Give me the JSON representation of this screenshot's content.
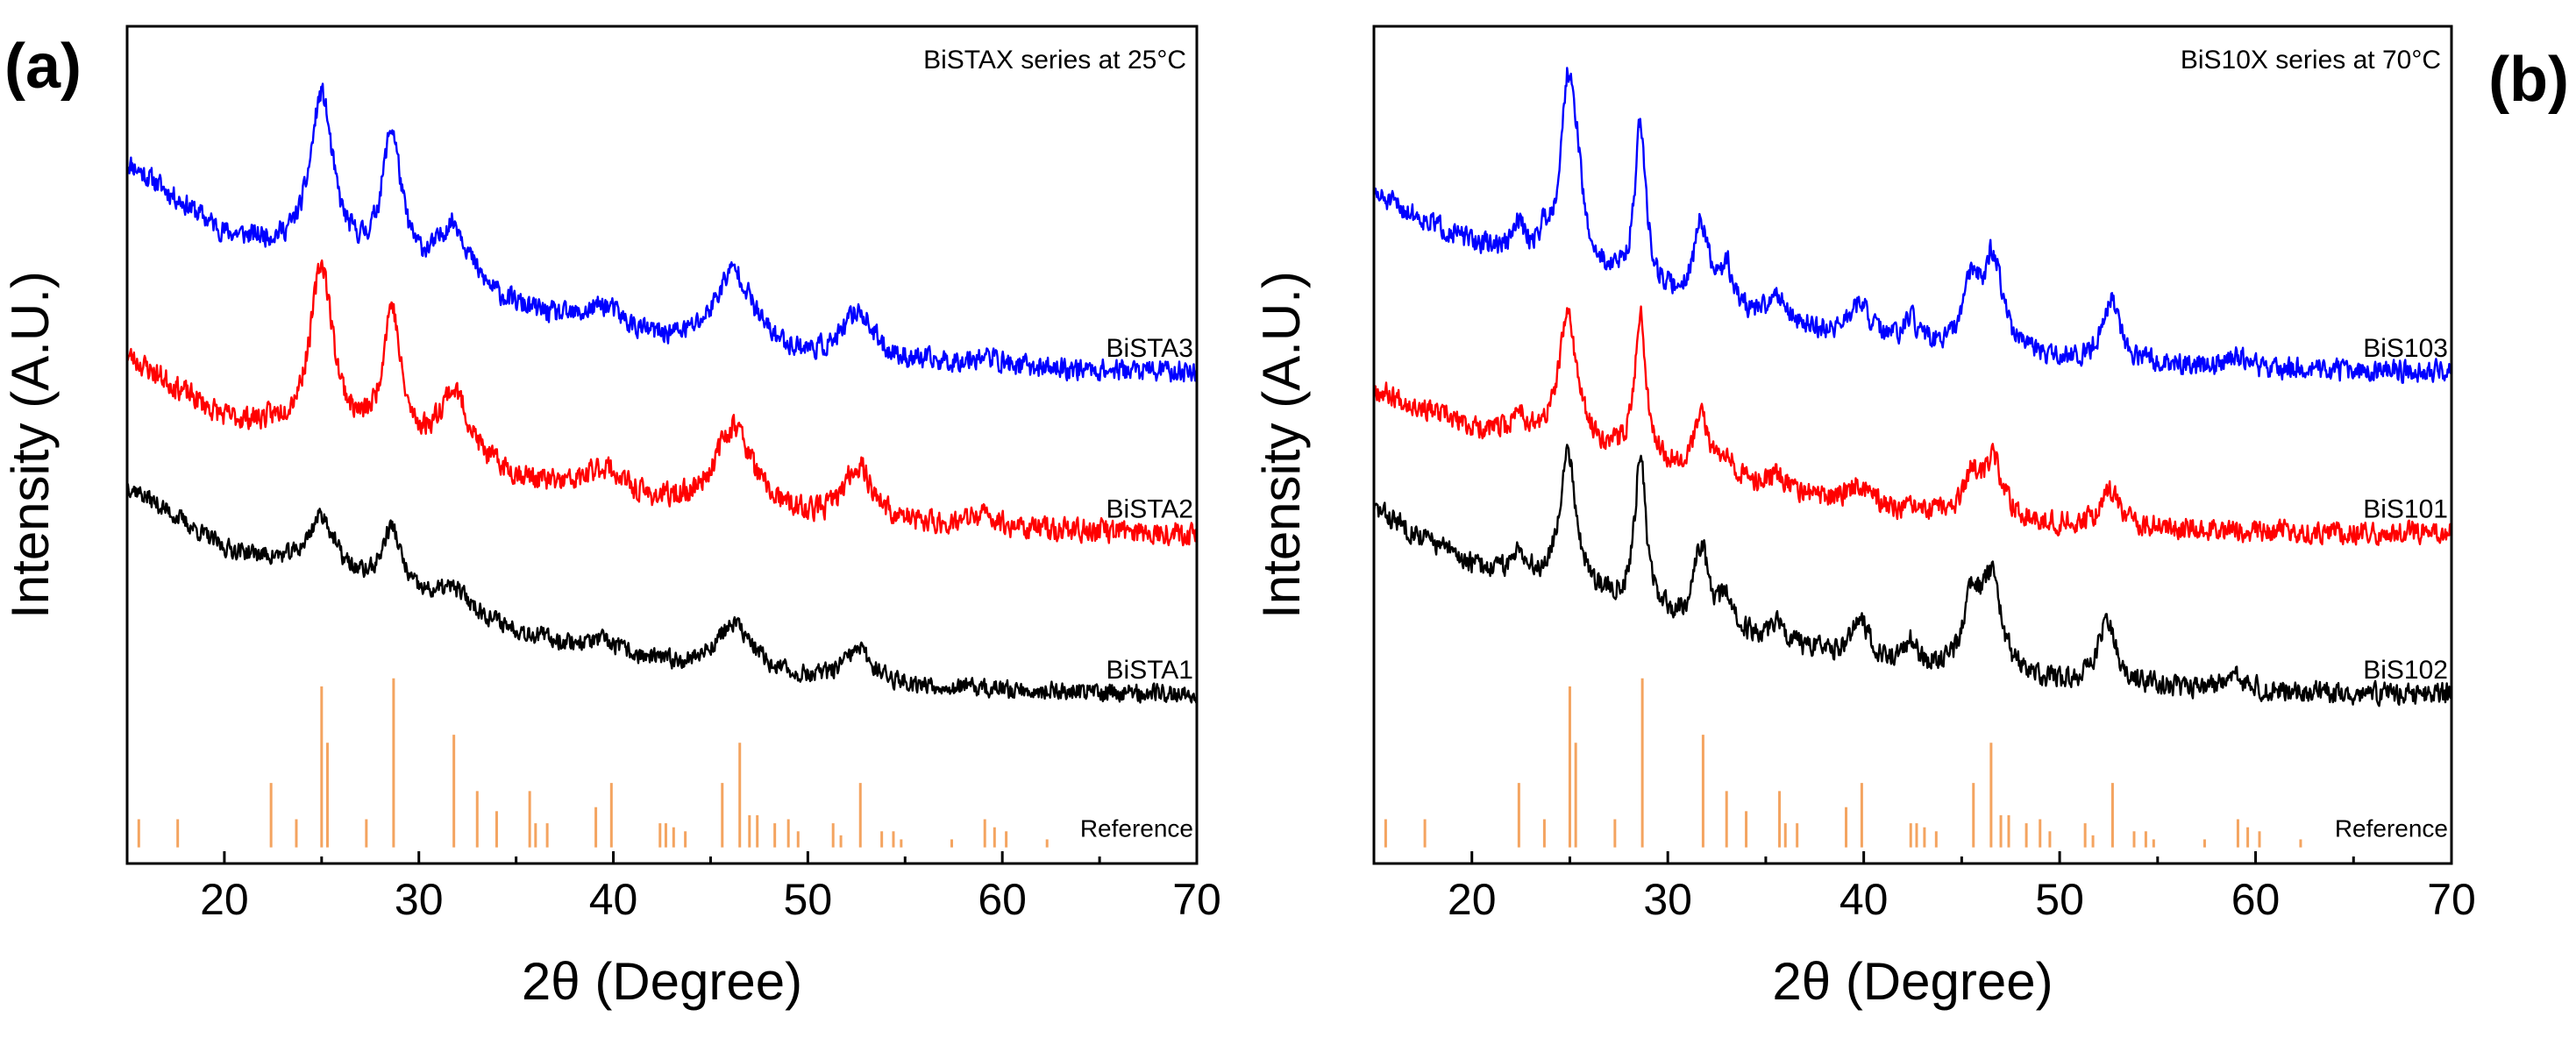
{
  "chart_data": [
    {
      "type": "line",
      "panel_label": "(a)",
      "title": "BiSTAX series at 25°C",
      "xlabel": "2θ (Degree)",
      "ylabel": "Intensity (A.U.)",
      "xlim": [
        15,
        70
      ],
      "xticks": [
        20,
        30,
        40,
        50,
        60,
        70
      ],
      "y_ticks_shown": false,
      "series": [
        {
          "name": "BiSTA3",
          "color": "#0000ff",
          "baseline": 4.5,
          "amp": 1.0,
          "noise": 0.12,
          "seed": 11,
          "bg": [
            [
              15,
              2.6
            ],
            [
              20,
              1.7
            ],
            [
              25,
              1.4
            ],
            [
              30,
              1.1
            ],
            [
              40,
              0.4
            ],
            [
              50,
              0.15
            ],
            [
              60,
              0.05
            ],
            [
              70,
              0.0
            ]
          ],
          "peaks": [
            [
              25.0,
              2.0,
              0.7
            ],
            [
              28.6,
              1.7,
              0.6
            ],
            [
              31.8,
              0.8,
              1.0
            ],
            [
              39.6,
              0.35,
              1.2
            ],
            [
              46.2,
              1.0,
              1.2
            ],
            [
              52.6,
              0.6,
              0.9
            ],
            [
              59.0,
              0.12,
              1.0
            ]
          ]
        },
        {
          "name": "BiSTA2",
          "color": "#ff0000",
          "baseline": 2.5,
          "amp": 1.0,
          "noise": 0.13,
          "seed": 23,
          "bg": [
            [
              15,
              2.2
            ],
            [
              20,
              1.4
            ],
            [
              25,
              1.2
            ],
            [
              30,
              0.9
            ],
            [
              40,
              0.35
            ],
            [
              50,
              0.12
            ],
            [
              60,
              0.04
            ],
            [
              70,
              0.0
            ]
          ],
          "peaks": [
            [
              25.0,
              2.1,
              0.7
            ],
            [
              28.6,
              1.7,
              0.55
            ],
            [
              31.8,
              0.9,
              1.0
            ],
            [
              39.6,
              0.4,
              1.2
            ],
            [
              46.2,
              1.1,
              1.2
            ],
            [
              52.6,
              0.7,
              0.9
            ],
            [
              59.0,
              0.15,
              1.0
            ]
          ]
        },
        {
          "name": "BiSTA1",
          "color": "#000000",
          "baseline": 0.5,
          "amp": 1.0,
          "noise": 0.1,
          "seed": 37,
          "bg": [
            [
              15,
              2.6
            ],
            [
              20,
              1.8
            ],
            [
              25,
              1.5
            ],
            [
              30,
              1.1
            ],
            [
              40,
              0.4
            ],
            [
              50,
              0.15
            ],
            [
              60,
              0.05
            ],
            [
              70,
              0.0
            ]
          ],
          "peaks": [
            [
              25.0,
              0.7,
              0.8
            ],
            [
              28.6,
              0.8,
              0.6
            ],
            [
              31.8,
              0.3,
              1.2
            ],
            [
              39.6,
              0.2,
              1.4
            ],
            [
              46.2,
              0.6,
              1.2
            ],
            [
              52.6,
              0.4,
              0.9
            ]
          ]
        }
      ],
      "reference": {
        "name": "Reference",
        "color": "#f4a460",
        "baseline": -1.4,
        "peaks": [
          [
            15.6,
            0.35
          ],
          [
            17.6,
            0.35
          ],
          [
            22.4,
            0.8
          ],
          [
            23.7,
            0.35
          ],
          [
            25.0,
            2.0
          ],
          [
            25.3,
            1.3
          ],
          [
            27.3,
            0.35
          ],
          [
            28.7,
            2.1
          ],
          [
            31.8,
            1.4
          ],
          [
            33.0,
            0.7
          ],
          [
            34.0,
            0.45
          ],
          [
            35.7,
            0.7
          ],
          [
            36.0,
            0.3
          ],
          [
            36.6,
            0.3
          ],
          [
            39.1,
            0.5
          ],
          [
            39.9,
            0.8
          ],
          [
            42.4,
            0.3
          ],
          [
            42.7,
            0.3
          ],
          [
            43.1,
            0.25
          ],
          [
            43.7,
            0.2
          ],
          [
            45.6,
            0.8
          ],
          [
            46.5,
            1.3
          ],
          [
            47.0,
            0.4
          ],
          [
            47.4,
            0.4
          ],
          [
            48.3,
            0.3
          ],
          [
            49.0,
            0.35
          ],
          [
            49.5,
            0.2
          ],
          [
            51.3,
            0.3
          ],
          [
            51.7,
            0.15
          ],
          [
            52.7,
            0.8
          ],
          [
            53.8,
            0.2
          ],
          [
            54.4,
            0.2
          ],
          [
            54.8,
            0.1
          ],
          [
            57.4,
            0.1
          ],
          [
            59.1,
            0.35
          ],
          [
            59.6,
            0.25
          ],
          [
            60.2,
            0.2
          ],
          [
            62.3,
            0.1
          ]
        ]
      }
    },
    {
      "type": "line",
      "panel_label": "(b)",
      "title": "BiS10X series at 70°C",
      "xlabel": "2θ (Degree)",
      "ylabel": "Intensity (A.U.)",
      "xlim": [
        15,
        70
      ],
      "xticks": [
        20,
        30,
        40,
        50,
        60,
        70
      ],
      "y_ticks_shown": false,
      "series": [
        {
          "name": "BiS103",
          "color": "#0000ff",
          "baseline": 4.5,
          "amp": 1.0,
          "noise": 0.12,
          "seed": 51,
          "bg": [
            [
              15,
              2.2
            ],
            [
              20,
              1.6
            ],
            [
              25,
              1.3
            ],
            [
              30,
              0.9
            ],
            [
              40,
              0.35
            ],
            [
              50,
              0.12
            ],
            [
              60,
              0.04
            ],
            [
              70,
              0.0
            ]
          ],
          "peaks": [
            [
              22.4,
              0.35,
              0.3
            ],
            [
              23.7,
              0.25,
              0.3
            ],
            [
              24.9,
              2.2,
              0.45
            ],
            [
              25.4,
              0.7,
              0.3
            ],
            [
              28.6,
              2.0,
              0.35
            ],
            [
              31.7,
              1.0,
              0.45
            ],
            [
              33.0,
              0.5,
              0.4
            ],
            [
              35.6,
              0.35,
              0.5
            ],
            [
              39.8,
              0.45,
              0.7
            ],
            [
              42.4,
              0.3,
              0.45
            ],
            [
              45.5,
              0.8,
              0.45
            ],
            [
              46.6,
              1.2,
              0.6
            ],
            [
              52.6,
              0.8,
              0.55
            ],
            [
              59.0,
              0.15,
              0.6
            ]
          ]
        },
        {
          "name": "BiS101",
          "color": "#ff0000",
          "baseline": 2.5,
          "amp": 1.0,
          "noise": 0.12,
          "seed": 67,
          "bg": [
            [
              15,
              1.8
            ],
            [
              20,
              1.3
            ],
            [
              25,
              1.1
            ],
            [
              30,
              0.8
            ],
            [
              40,
              0.3
            ],
            [
              50,
              0.1
            ],
            [
              60,
              0.03
            ],
            [
              70,
              0.0
            ]
          ],
          "peaks": [
            [
              22.4,
              0.3,
              0.3
            ],
            [
              24.9,
              1.6,
              0.55
            ],
            [
              28.6,
              1.8,
              0.35
            ],
            [
              31.7,
              0.7,
              0.45
            ],
            [
              33.0,
              0.3,
              0.4
            ],
            [
              35.6,
              0.2,
              0.5
            ],
            [
              39.8,
              0.3,
              0.7
            ],
            [
              45.5,
              0.45,
              0.45
            ],
            [
              46.6,
              0.7,
              0.6
            ],
            [
              52.6,
              0.45,
              0.55
            ]
          ]
        },
        {
          "name": "BiS102",
          "color": "#000000",
          "baseline": 0.5,
          "amp": 1.0,
          "noise": 0.12,
          "seed": 83,
          "bg": [
            [
              15,
              2.3
            ],
            [
              20,
              1.6
            ],
            [
              25,
              1.3
            ],
            [
              30,
              0.9
            ],
            [
              40,
              0.35
            ],
            [
              50,
              0.12
            ],
            [
              60,
              0.04
            ],
            [
              70,
              0.0
            ]
          ],
          "peaks": [
            [
              22.4,
              0.35,
              0.3
            ],
            [
              24.9,
              1.7,
              0.5
            ],
            [
              28.6,
              1.9,
              0.35
            ],
            [
              31.7,
              1.0,
              0.45
            ],
            [
              33.0,
              0.4,
              0.4
            ],
            [
              35.6,
              0.3,
              0.5
            ],
            [
              39.8,
              0.5,
              0.7
            ],
            [
              42.4,
              0.3,
              0.45
            ],
            [
              45.5,
              0.85,
              0.45
            ],
            [
              46.5,
              1.2,
              0.6
            ],
            [
              52.4,
              0.8,
              0.55
            ],
            [
              59.0,
              0.15,
              0.6
            ]
          ]
        }
      ],
      "reference": {
        "name": "Reference",
        "color": "#f4a460",
        "baseline": -1.4,
        "peaks": [
          [
            15.6,
            0.35
          ],
          [
            17.6,
            0.35
          ],
          [
            22.4,
            0.8
          ],
          [
            23.7,
            0.35
          ],
          [
            25.0,
            2.0
          ],
          [
            25.3,
            1.3
          ],
          [
            27.3,
            0.35
          ],
          [
            28.7,
            2.1
          ],
          [
            31.8,
            1.4
          ],
          [
            33.0,
            0.7
          ],
          [
            34.0,
            0.45
          ],
          [
            35.7,
            0.7
          ],
          [
            36.0,
            0.3
          ],
          [
            36.6,
            0.3
          ],
          [
            39.1,
            0.5
          ],
          [
            39.9,
            0.8
          ],
          [
            42.4,
            0.3
          ],
          [
            42.7,
            0.3
          ],
          [
            43.1,
            0.25
          ],
          [
            43.7,
            0.2
          ],
          [
            45.6,
            0.8
          ],
          [
            46.5,
            1.3
          ],
          [
            47.0,
            0.4
          ],
          [
            47.4,
            0.4
          ],
          [
            48.3,
            0.3
          ],
          [
            49.0,
            0.35
          ],
          [
            49.5,
            0.2
          ],
          [
            51.3,
            0.3
          ],
          [
            51.7,
            0.15
          ],
          [
            52.7,
            0.8
          ],
          [
            53.8,
            0.2
          ],
          [
            54.4,
            0.2
          ],
          [
            54.8,
            0.1
          ],
          [
            57.4,
            0.1
          ],
          [
            59.1,
            0.35
          ],
          [
            59.6,
            0.25
          ],
          [
            60.2,
            0.2
          ],
          [
            62.3,
            0.1
          ]
        ]
      }
    }
  ]
}
